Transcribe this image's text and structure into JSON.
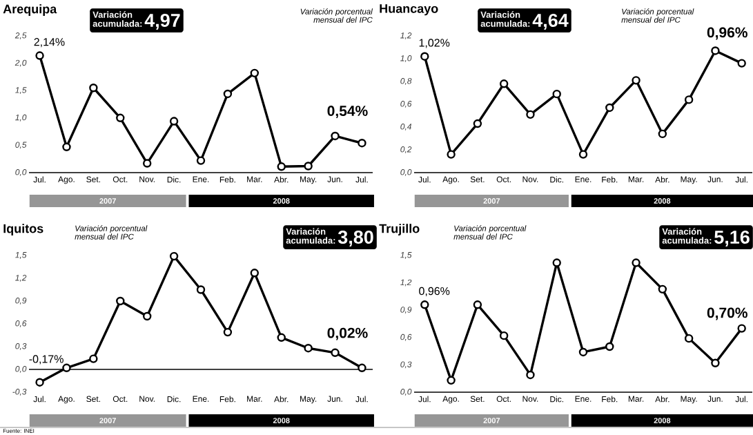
{
  "chart_data": [
    {
      "type": "line",
      "title": "Arequipa",
      "subtitle": "Variación porcentual mensual del IPC",
      "categories": [
        "Jul.",
        "Ago.",
        "Set.",
        "Oct.",
        "Nov.",
        "Dic.",
        "Ene.",
        "Feb.",
        "Mar.",
        "Abr.",
        "May.",
        "Jun.",
        "Jul."
      ],
      "values": [
        2.14,
        0.47,
        1.55,
        1.0,
        0.17,
        0.94,
        0.22,
        1.44,
        1.82,
        0.11,
        0.12,
        0.67,
        0.54
      ],
      "value_labels": [
        "2,14%",
        null,
        null,
        null,
        null,
        null,
        null,
        null,
        null,
        null,
        null,
        null,
        "0,54%"
      ],
      "color": "#000000",
      "marker": "circle",
      "line_style": "solid",
      "ylim": [
        0,
        2.5
      ],
      "yticks": [
        {
          "value": 0,
          "label": "0,0"
        },
        {
          "value": 0.5,
          "label": "0,5"
        },
        {
          "value": 1.0,
          "label": "1,0"
        },
        {
          "value": 1.5,
          "label": "1,5"
        },
        {
          "value": 2.0,
          "label": "2,0"
        },
        {
          "value": 2.5,
          "label": "2,5"
        }
      ],
      "annotations": [
        "Variación acumulada:",
        "4,97",
        "2007",
        "2008"
      ]
    },
    {
      "type": "line",
      "title": "Huancayo",
      "subtitle": "Variación porcentual mensual del IPC",
      "categories": [
        "Jul.",
        "Ago.",
        "Set.",
        "Oct.",
        "Nov.",
        "Dic.",
        "Ene.",
        "Feb.",
        "Mar.",
        "Abr.",
        "May.",
        "Jun.",
        "Jul."
      ],
      "values": [
        1.02,
        0.16,
        0.43,
        0.78,
        0.51,
        0.69,
        0.16,
        0.57,
        0.81,
        0.34,
        0.64,
        1.07,
        0.96
      ],
      "value_labels": [
        "1,02%",
        null,
        null,
        null,
        null,
        null,
        null,
        null,
        null,
        null,
        null,
        null,
        "0,96%"
      ],
      "color": "#000000",
      "marker": "circle",
      "line_style": "solid",
      "ylim": [
        0,
        1.2
      ],
      "yticks": [
        {
          "value": 0,
          "label": "0,0"
        },
        {
          "value": 0.2,
          "label": "0,2"
        },
        {
          "value": 0.4,
          "label": "0,4"
        },
        {
          "value": 0.6,
          "label": "0,6"
        },
        {
          "value": 0.8,
          "label": "0,8"
        },
        {
          "value": 1.0,
          "label": "1,0"
        },
        {
          "value": 1.2,
          "label": "1,2"
        }
      ],
      "annotations": [
        "Variación acumulada:",
        "4,64",
        "2007",
        "2008"
      ]
    },
    {
      "type": "line",
      "title": "Iquitos",
      "subtitle": "Variación porcentual mensual del IPC",
      "categories": [
        "Jul.",
        "Ago.",
        "Set.",
        "Oct.",
        "Nov.",
        "Dic.",
        "Ene.",
        "Feb.",
        "Mar.",
        "Abr.",
        "May.",
        "Jun.",
        "Jul."
      ],
      "values": [
        -0.17,
        0.02,
        0.14,
        0.9,
        0.7,
        1.49,
        1.05,
        0.49,
        1.27,
        0.42,
        0.28,
        0.22,
        0.02
      ],
      "value_labels": [
        "-0,17%",
        null,
        null,
        null,
        null,
        null,
        null,
        null,
        null,
        null,
        null,
        null,
        "0,02%"
      ],
      "color": "#000000",
      "marker": "circle",
      "line_style": "solid",
      "ylim": [
        -0.3,
        1.5
      ],
      "yticks": [
        {
          "value": -0.3,
          "label": "-0,3"
        },
        {
          "value": 0,
          "label": "0,0"
        },
        {
          "value": 0.3,
          "label": "0,3"
        },
        {
          "value": 0.6,
          "label": "0,6"
        },
        {
          "value": 0.9,
          "label": "0,9"
        },
        {
          "value": 1.2,
          "label": "1,2"
        },
        {
          "value": 1.5,
          "label": "1,5"
        }
      ],
      "ref_lines": [
        {
          "axis": "y",
          "value": 0,
          "color": "#000000"
        }
      ],
      "annotations": [
        "Variación acumulada:",
        "3,80",
        "2007",
        "2008",
        "Fuente: INEI"
      ]
    },
    {
      "type": "line",
      "title": "Trujillo",
      "subtitle": "Variación porcentual mensual del IPC",
      "categories": [
        "Jul.",
        "Ago.",
        "Set.",
        "Oct.",
        "Nov.",
        "Dic.",
        "Ene.",
        "Feb.",
        "Mar.",
        "Abr.",
        "May.",
        "Jun.",
        "Jul."
      ],
      "values": [
        0.96,
        0.13,
        0.96,
        0.62,
        0.19,
        1.42,
        0.44,
        0.5,
        1.42,
        1.13,
        0.59,
        0.32,
        0.7
      ],
      "value_labels": [
        "0,96%",
        null,
        null,
        null,
        null,
        null,
        null,
        null,
        null,
        null,
        null,
        null,
        "0,70%"
      ],
      "color": "#000000",
      "marker": "circle",
      "line_style": "solid",
      "ylim": [
        0,
        1.5
      ],
      "yticks": [
        {
          "value": 0,
          "label": "0,0"
        },
        {
          "value": 0.3,
          "label": "0,3"
        },
        {
          "value": 0.6,
          "label": "0,6"
        },
        {
          "value": 0.9,
          "label": "0,9"
        },
        {
          "value": 1.2,
          "label": "1,2"
        },
        {
          "value": 1.5,
          "label": "1,5"
        }
      ],
      "annotations": [
        "Variación acumulada:",
        "5,16",
        "2007",
        "2008"
      ]
    }
  ]
}
